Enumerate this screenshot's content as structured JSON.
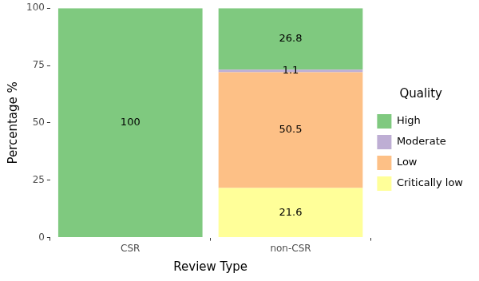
{
  "chart_data": {
    "type": "bar",
    "stacked": true,
    "categories": [
      "CSR",
      "non-CSR"
    ],
    "series": [
      {
        "name": "High",
        "color": "#7fc97f",
        "values": [
          100,
          26.8
        ]
      },
      {
        "name": "Moderate",
        "color": "#beaed4",
        "values": [
          null,
          1.1
        ]
      },
      {
        "name": "Low",
        "color": "#fdc086",
        "values": [
          null,
          50.5
        ]
      },
      {
        "name": "Critically low",
        "color": "#ffff99",
        "values": [
          null,
          21.6
        ]
      }
    ],
    "x_label": "Review Type",
    "y_label": "Percentage %",
    "legend_title": "Quality",
    "legend": "right",
    "ylim": [
      0,
      100
    ],
    "yticks": [
      0,
      25,
      50,
      75,
      100
    ],
    "grid": false,
    "data_labels": true
  }
}
